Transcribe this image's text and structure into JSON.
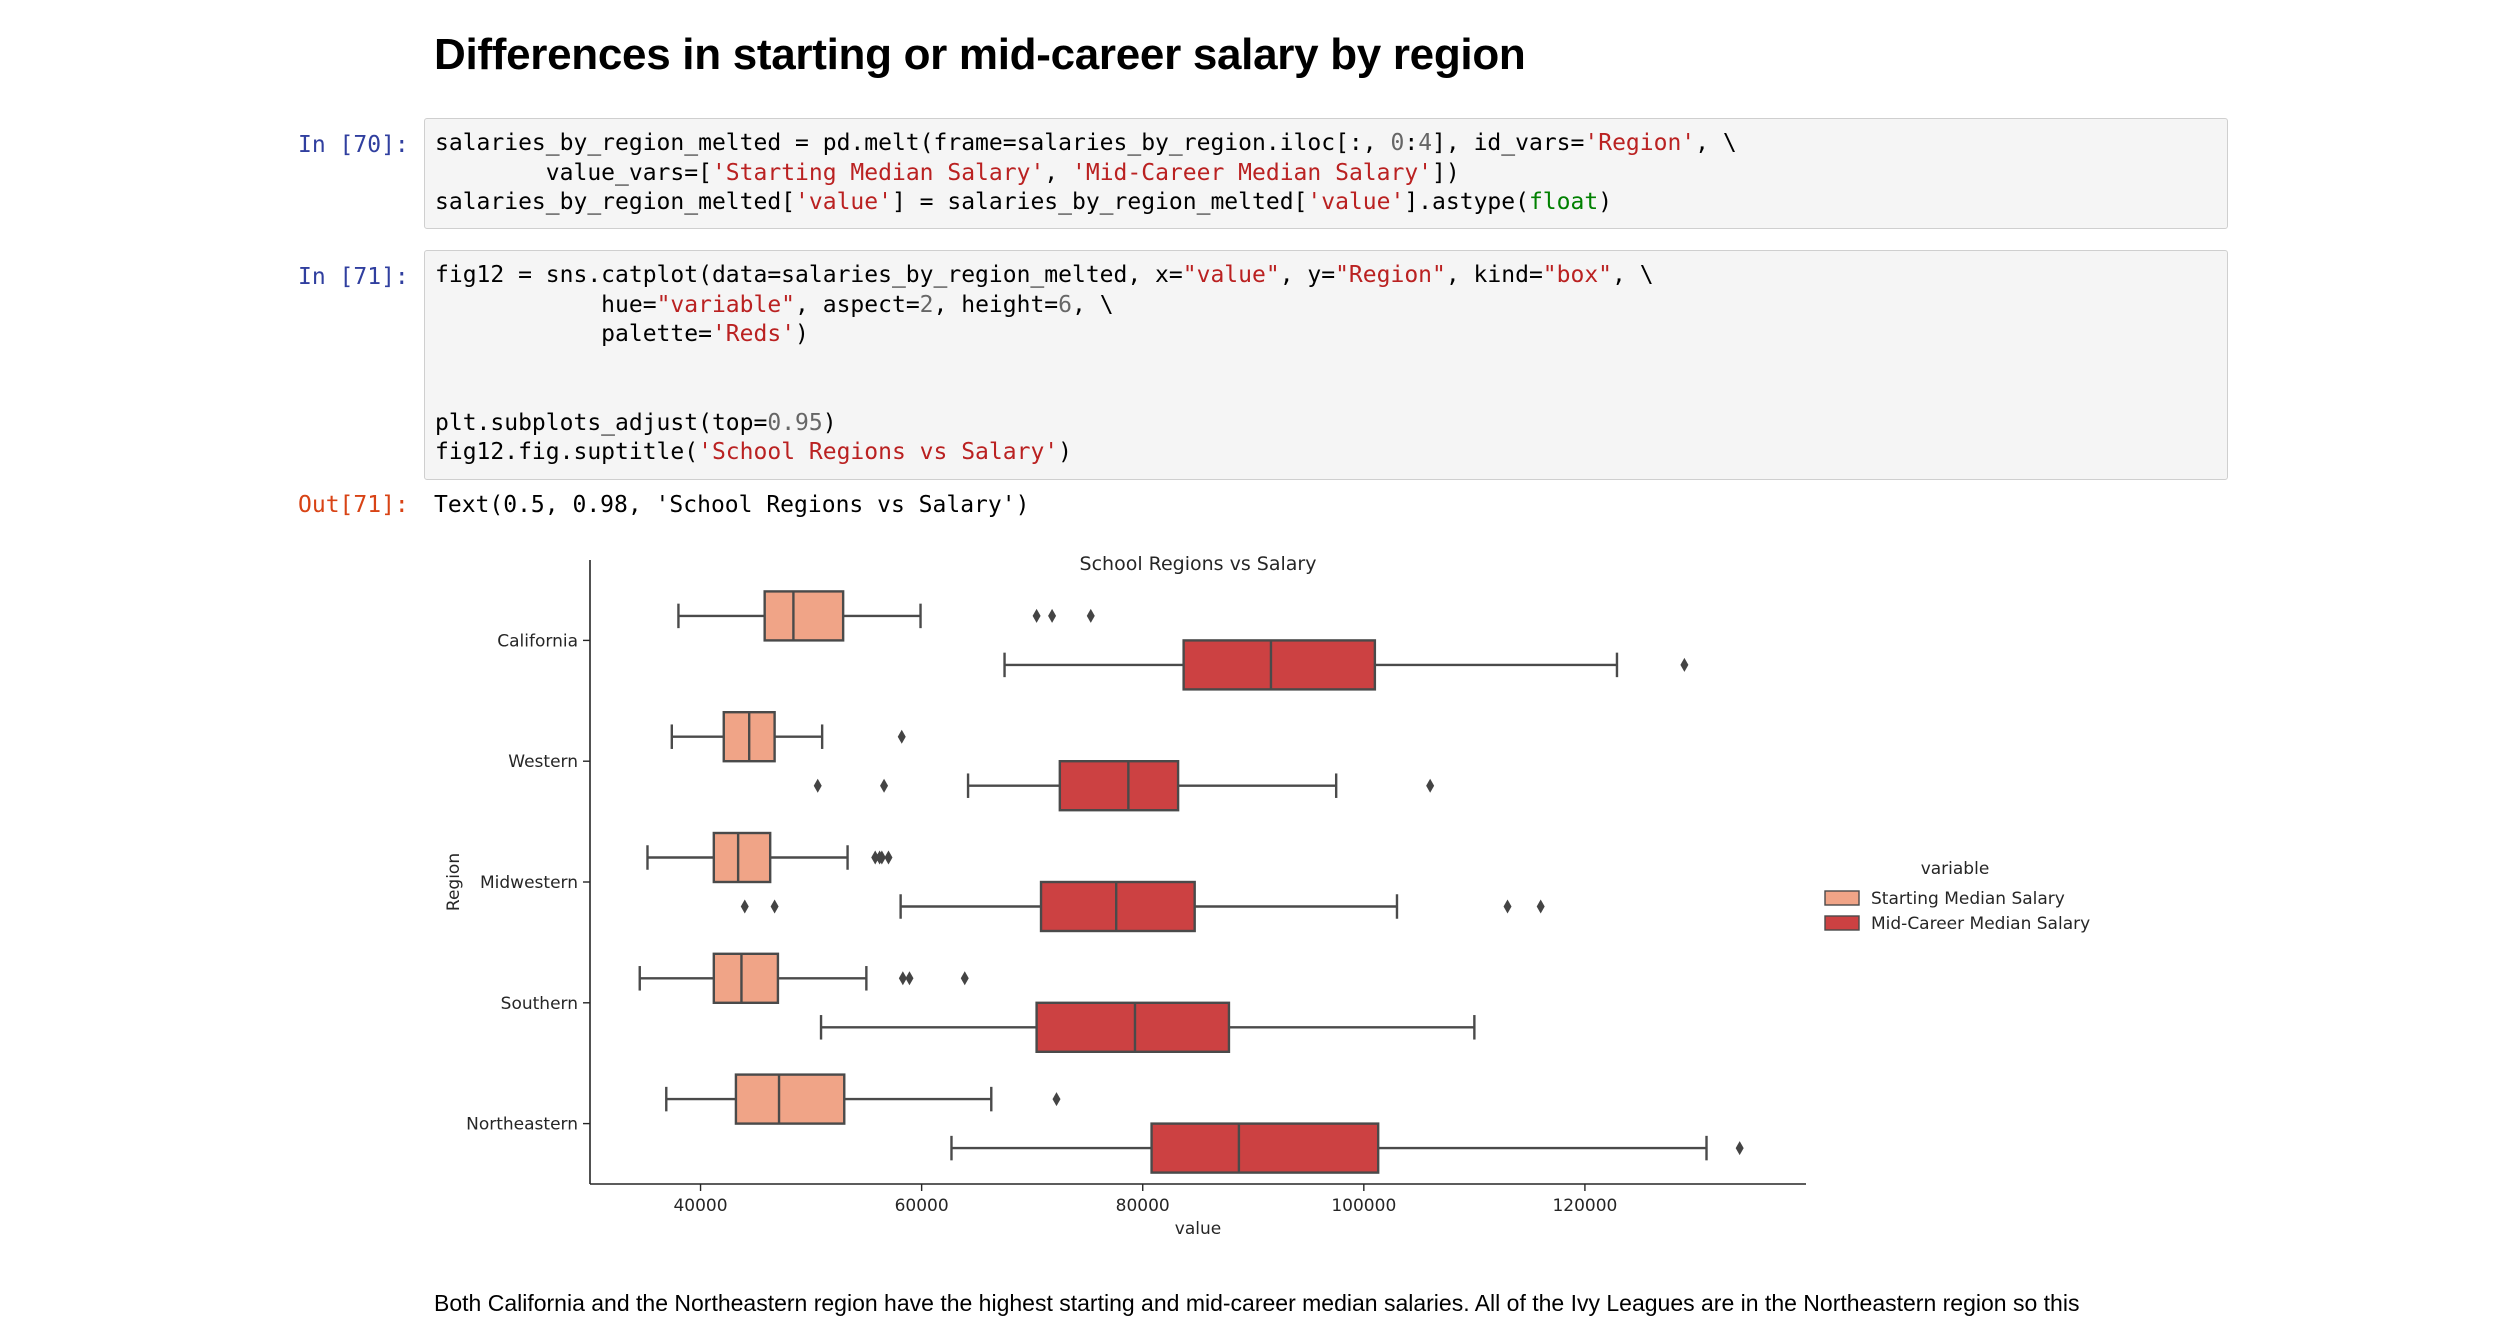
{
  "heading": "Differences in starting or mid-career salary by region",
  "cell70": {
    "prompt": "In [70]:",
    "lines": [
      [
        [
          "salaries_by_region_melted = pd.melt(frame=salaries_by_region.iloc[:, ",
          ""
        ],
        [
          "0",
          "n"
        ],
        [
          ":",
          ""
        ],
        [
          "4",
          "n"
        ],
        [
          "], id_vars=",
          ""
        ],
        [
          "'Region'",
          "s"
        ],
        [
          ", \\",
          ""
        ]
      ],
      [
        [
          "        value_vars=[",
          ""
        ],
        [
          "'Starting Median Salary'",
          "s"
        ],
        [
          ", ",
          ""
        ],
        [
          "'Mid-Career Median Salary'",
          "s"
        ],
        [
          "])",
          ""
        ]
      ],
      [
        [
          "salaries_by_region_melted[",
          ""
        ],
        [
          "'value'",
          "s"
        ],
        [
          "] = salaries_by_region_melted[",
          ""
        ],
        [
          "'value'",
          "s"
        ],
        [
          "].astype(",
          ""
        ],
        [
          "float",
          "b"
        ],
        [
          ")",
          ""
        ]
      ]
    ]
  },
  "cell71": {
    "prompt": "In [71]:",
    "lines": [
      [
        [
          "fig12 = sns.catplot(data=salaries_by_region_melted, x=",
          ""
        ],
        [
          "\"value\"",
          "s"
        ],
        [
          ", y=",
          ""
        ],
        [
          "\"Region\"",
          "s"
        ],
        [
          ", kind=",
          ""
        ],
        [
          "\"box\"",
          "s"
        ],
        [
          ", \\",
          ""
        ]
      ],
      [
        [
          "            hue=",
          ""
        ],
        [
          "\"variable\"",
          "s"
        ],
        [
          ", aspect=",
          ""
        ],
        [
          "2",
          "n"
        ],
        [
          ", height=",
          ""
        ],
        [
          "6",
          "n"
        ],
        [
          ", \\",
          ""
        ]
      ],
      [
        [
          "            palette=",
          ""
        ],
        [
          "'Reds'",
          "s"
        ],
        [
          ")",
          ""
        ]
      ],
      [],
      [],
      [
        [
          "plt.subplots_adjust(top=",
          ""
        ],
        [
          "0.95",
          "n"
        ],
        [
          ")",
          ""
        ]
      ],
      [
        [
          "fig12.fig.suptitle(",
          ""
        ],
        [
          "'School Regions vs Salary'",
          "s"
        ],
        [
          ")",
          ""
        ]
      ]
    ]
  },
  "out71": {
    "prompt": "Out[71]:",
    "text": "Text(0.5, 0.98, 'School Regions vs Salary')"
  },
  "paragraph": "Both California and the Northeastern region have the highest starting and mid-career median salaries. All of the Ivy Leagues are in the Northeastern region so this",
  "chart_data": {
    "type": "box",
    "orientation": "horizontal",
    "title": "School Regions vs Salary",
    "xlabel": "value",
    "ylabel": "Region",
    "xlim": [
      30000,
      140000
    ],
    "xticks": [
      40000,
      60000,
      80000,
      100000,
      120000
    ],
    "categories": [
      "California",
      "Western",
      "Midwestern",
      "Southern",
      "Northeastern"
    ],
    "legend": {
      "title": "variable",
      "placement": "right"
    },
    "series": [
      {
        "name": "Starting Median Salary",
        "color": "#f0a487",
        "boxes": [
          {
            "whislo": 38000,
            "q1": 45800,
            "med": 48400,
            "q3": 52900,
            "whishi": 59900,
            "fliers": [
              70400,
              71800,
              75300
            ]
          },
          {
            "whislo": 37400,
            "q1": 42100,
            "med": 44400,
            "q3": 46700,
            "whishi": 51000,
            "fliers": [
              58200
            ]
          },
          {
            "whislo": 35200,
            "q1": 41200,
            "med": 43400,
            "q3": 46300,
            "whishi": 53300,
            "fliers": [
              55800,
              56200,
              56400,
              57000
            ]
          },
          {
            "whislo": 34500,
            "q1": 41200,
            "med": 43700,
            "q3": 47000,
            "whishi": 55000,
            "fliers": [
              58300,
              58900,
              63900
            ]
          },
          {
            "whislo": 36900,
            "q1": 43200,
            "med": 47100,
            "q3": 53000,
            "whishi": 66300,
            "fliers": [
              72200
            ]
          }
        ]
      },
      {
        "name": "Mid-Career Median Salary",
        "color": "#cc4142",
        "boxes": [
          {
            "whislo": 67500,
            "q1": 83700,
            "med": 91600,
            "q3": 101000,
            "whishi": 122900,
            "fliers": [
              129000
            ]
          },
          {
            "whislo": 64200,
            "q1": 72500,
            "med": 78700,
            "q3": 83200,
            "whishi": 97500,
            "fliers": [
              50600,
              56600,
              106000
            ]
          },
          {
            "whislo": 58100,
            "q1": 70800,
            "med": 77600,
            "q3": 84700,
            "whishi": 103000,
            "fliers": [
              44000,
              46700,
              113000,
              116000
            ]
          },
          {
            "whislo": 50900,
            "q1": 70400,
            "med": 79300,
            "q3": 87800,
            "whishi": 110000,
            "fliers": []
          },
          {
            "whislo": 62700,
            "q1": 80800,
            "med": 88700,
            "q3": 101300,
            "whishi": 131000,
            "fliers": [
              134000
            ]
          }
        ]
      }
    ]
  }
}
